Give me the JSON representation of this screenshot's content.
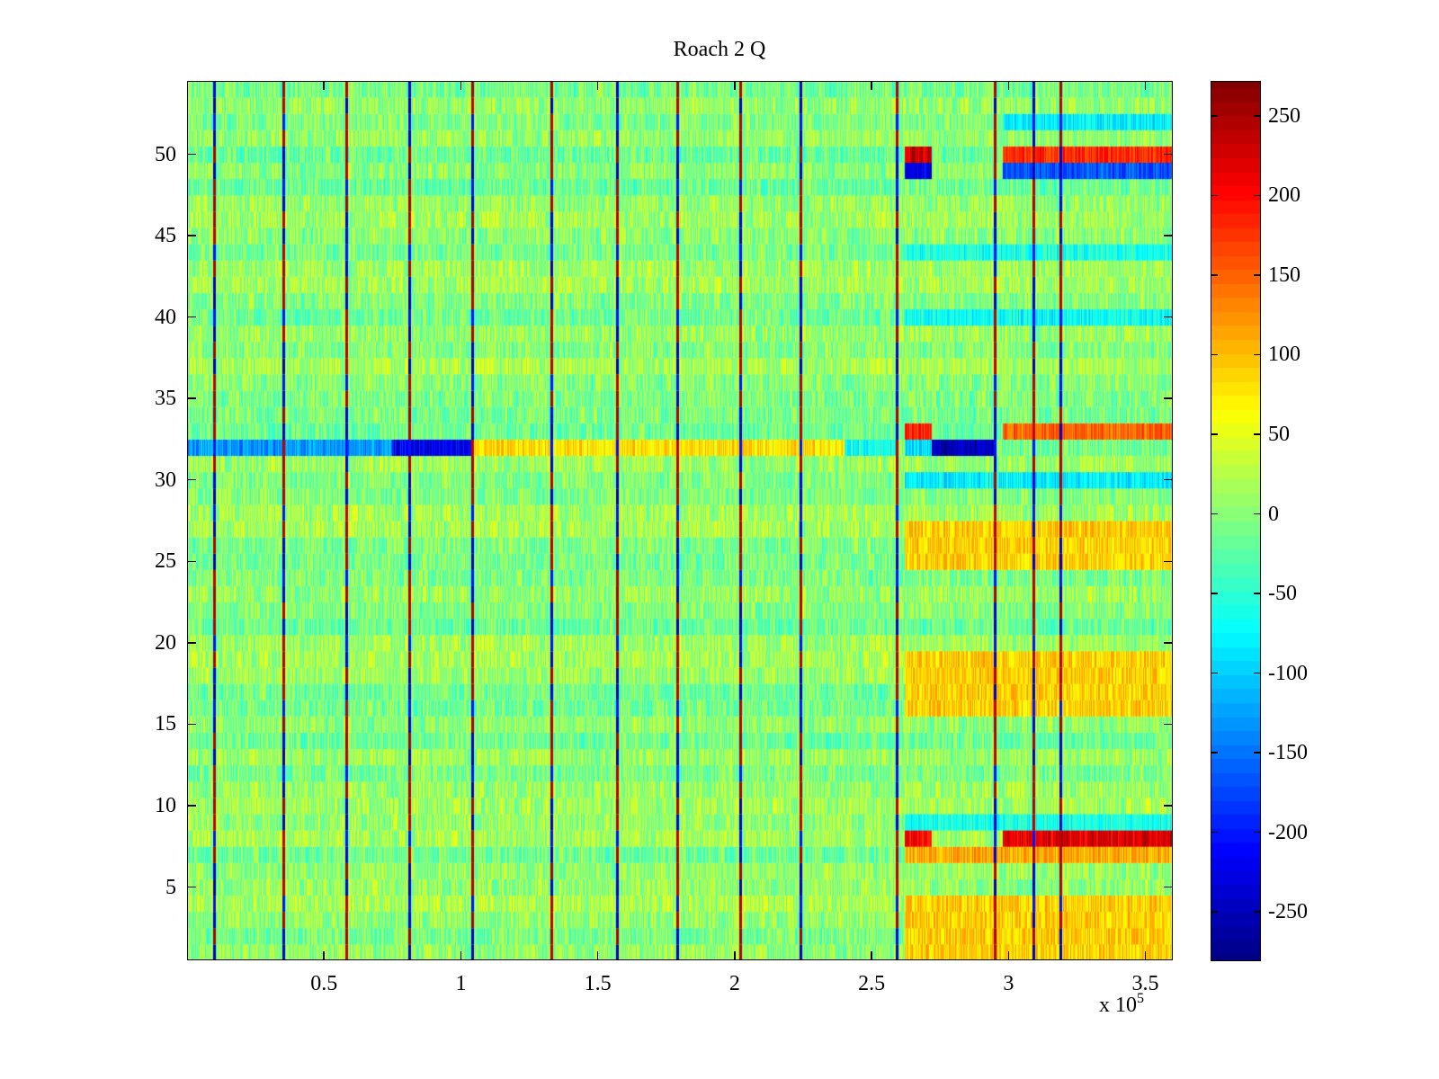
{
  "chart_data": {
    "type": "heatmap",
    "title": "Roach 2 Q",
    "xlabel": "",
    "ylabel": "",
    "x_exponent_label": "x 10",
    "x_exponent_power": "5",
    "xlim": [
      0,
      360000
    ],
    "ylim": [
      0.5,
      54.5
    ],
    "x_ticks": [
      50000,
      100000,
      150000,
      200000,
      250000,
      300000,
      350000
    ],
    "x_tick_labels": [
      "0.5",
      "1",
      "1.5",
      "2",
      "2.5",
      "3",
      "3.5"
    ],
    "y_ticks": [
      5,
      10,
      15,
      20,
      25,
      30,
      35,
      40,
      45,
      50
    ],
    "y_tick_labels": [
      "5",
      "10",
      "15",
      "20",
      "25",
      "30",
      "35",
      "40",
      "45",
      "50"
    ],
    "rows": 54,
    "colormap": "jet",
    "colormap_levels": 64,
    "clim": [
      -281,
      272
    ],
    "colorbar": {
      "location": "right",
      "ticks": [
        250,
        200,
        150,
        100,
        50,
        0,
        -50,
        -100,
        -150,
        -200,
        -250
      ],
      "tick_labels": [
        "250",
        "200",
        "150",
        "100",
        "50",
        "0",
        "-50",
        "-100",
        "-150",
        "-200",
        "-250"
      ]
    },
    "background_value_range": [
      -60,
      60
    ],
    "vertical_stripes": [
      {
        "x": 10000,
        "pattern": "alternating"
      },
      {
        "x": 35000,
        "pattern": "alternating"
      },
      {
        "x": 58000,
        "pattern": "alternating"
      },
      {
        "x": 81000,
        "pattern": "alternating"
      },
      {
        "x": 104000,
        "pattern": "alternating"
      },
      {
        "x": 133000,
        "pattern": "alternating"
      },
      {
        "x": 157000,
        "pattern": "alternating"
      },
      {
        "x": 179000,
        "pattern": "alternating"
      },
      {
        "x": 202000,
        "pattern": "alternating"
      },
      {
        "x": 224000,
        "pattern": "alternating"
      },
      {
        "x": 259000,
        "pattern": "alternating"
      },
      {
        "x": 295000,
        "pattern": "alternating"
      },
      {
        "x": 309000,
        "pattern": "alternating"
      },
      {
        "x": 319000,
        "pattern": "alternating"
      }
    ],
    "features": [
      {
        "row": 32,
        "x_range": [
          0,
          75000
        ],
        "value": -130,
        "note": "blue/cyan band"
      },
      {
        "row": 32,
        "x_range": [
          75000,
          104000
        ],
        "value": -220,
        "note": "deep blue band"
      },
      {
        "row": 32,
        "x_range": [
          104000,
          240000
        ],
        "value": 80,
        "note": "yellow/orange band"
      },
      {
        "row": 32,
        "x_range": [
          240000,
          259000
        ],
        "value": -60,
        "note": "cyan"
      },
      {
        "row": 32,
        "x_range": [
          262000,
          272000
        ],
        "value": -90,
        "note": "cyan"
      },
      {
        "row": 32,
        "x_range": [
          272000,
          295000
        ],
        "value": -250,
        "note": "deep blue"
      },
      {
        "row": 33,
        "x_range": [
          262000,
          272000
        ],
        "value": 180,
        "note": "red"
      },
      {
        "row": 33,
        "x_range": [
          298000,
          360000
        ],
        "value": 150,
        "note": "orange/red"
      },
      {
        "row": 30,
        "x_range": [
          262000,
          360000
        ],
        "value": -80,
        "note": "cyan"
      },
      {
        "row": 50,
        "x_range": [
          262000,
          272000
        ],
        "value": 230,
        "note": "dark red"
      },
      {
        "row": 50,
        "x_range": [
          298000,
          360000
        ],
        "value": 180,
        "note": "red"
      },
      {
        "row": 49,
        "x_range": [
          262000,
          272000
        ],
        "value": -230,
        "note": "deep blue"
      },
      {
        "row": 49,
        "x_range": [
          298000,
          360000
        ],
        "value": -170,
        "note": "blue"
      },
      {
        "row": 8,
        "x_range": [
          262000,
          272000
        ],
        "value": 210,
        "note": "red"
      },
      {
        "row": 8,
        "x_range": [
          298000,
          360000
        ],
        "value": 220,
        "note": "red"
      },
      {
        "row": 7,
        "x_range": [
          262000,
          360000
        ],
        "value": 110,
        "note": "orange"
      },
      {
        "row": 52,
        "x_range": [
          298000,
          360000
        ],
        "value": -80,
        "note": "cyan"
      },
      {
        "row": 40,
        "x_range": [
          262000,
          360000
        ],
        "value": -70,
        "note": "cyan"
      },
      {
        "row": 44,
        "x_range": [
          262000,
          360000
        ],
        "value": -60,
        "note": "cyan"
      },
      {
        "row": 9,
        "x_range": [
          262000,
          360000
        ],
        "value": -60,
        "note": "cyan"
      },
      {
        "rows": [
          1,
          2,
          3,
          4,
          16,
          17,
          18,
          19,
          25,
          26,
          27
        ],
        "x_range": [
          262000,
          360000
        ],
        "value": 90,
        "note": "orange/yellow"
      }
    ]
  }
}
